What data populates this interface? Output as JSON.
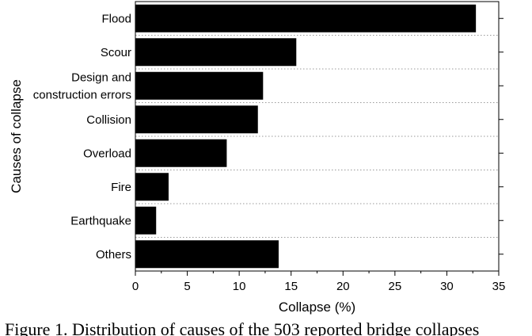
{
  "chart_data": {
    "type": "bar",
    "orientation": "horizontal",
    "categories": [
      "Flood",
      "Scour",
      "Design and\nconstruction errors",
      "Collision",
      "Overload",
      "Fire",
      "Earthquake",
      "Others"
    ],
    "values": [
      32.8,
      15.5,
      12.3,
      11.8,
      8.8,
      3.2,
      2.0,
      13.8
    ],
    "xlabel": "Collapse (%)",
    "ylabel": "Causes of collapse",
    "xlim": [
      0,
      35
    ],
    "xticks": [
      0,
      5,
      10,
      15,
      20,
      25,
      30,
      35
    ],
    "grid": "horizontal dotted separators",
    "bar_color": "#000000",
    "legend": "none"
  },
  "caption": "Figure 1. Distribution of causes of the 503 reported bridge collapses"
}
